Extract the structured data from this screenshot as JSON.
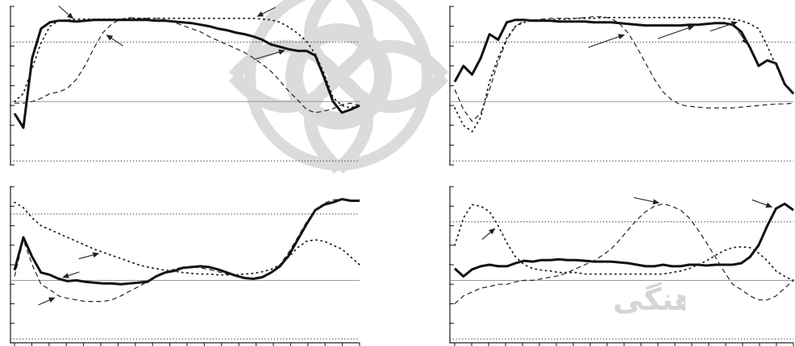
{
  "watermark": {
    "text": "پژوهشگاه علوم انسانی و مطالعات فرهنگی",
    "color": "#d5d5d5"
  },
  "colors": {
    "series": "#111111",
    "zero_line": "#8a8a8a",
    "watermark": "#d5d5d5"
  },
  "chart_data": [
    {
      "type": "line",
      "position": "top-left",
      "title": "",
      "xlabel": "",
      "ylabel": "",
      "grid": false,
      "legend": "none",
      "x_count": 40,
      "y_ticks": 9,
      "ylim": [
        -0.8,
        1.2
      ],
      "zero": 0,
      "ref_upper": 0.75,
      "ref_lower": -0.75,
      "series": [
        {
          "style": "solid",
          "values": [
            -0.15,
            -0.33,
            0.55,
            0.92,
            1.0,
            1.02,
            1.02,
            1.01,
            1.02,
            1.03,
            1.03,
            1.03,
            1.03,
            1.03,
            1.03,
            1.03,
            1.02,
            1.02,
            1.01,
            1.0,
            0.99,
            0.97,
            0.95,
            0.92,
            0.9,
            0.87,
            0.85,
            0.82,
            0.78,
            0.72,
            0.69,
            0.66,
            0.64,
            0.64,
            0.58,
            0.3,
            0.0,
            -0.14,
            -0.1,
            -0.05
          ]
        },
        {
          "style": "dashed",
          "values": [
            -0.02,
            -0.02,
            0.0,
            0.04,
            0.1,
            0.12,
            0.17,
            0.28,
            0.46,
            0.68,
            0.87,
            0.98,
            1.04,
            1.06,
            1.05,
            1.05,
            1.05,
            1.03,
            1.0,
            0.96,
            0.92,
            0.88,
            0.82,
            0.77,
            0.72,
            0.67,
            0.62,
            0.55,
            0.47,
            0.38,
            0.26,
            0.13,
            0.02,
            -0.1,
            -0.14,
            -0.12,
            -0.09,
            -0.04,
            -0.02,
            -0.05
          ]
        },
        {
          "style": "dotted",
          "values": [
            0.0,
            0.1,
            0.42,
            0.74,
            0.95,
            1.02,
            1.03,
            1.04,
            1.04,
            1.04,
            1.04,
            1.04,
            1.04,
            1.05,
            1.05,
            1.05,
            1.05,
            1.05,
            1.05,
            1.05,
            1.05,
            1.05,
            1.05,
            1.05,
            1.05,
            1.05,
            1.05,
            1.05,
            1.04,
            1.03,
            1.0,
            0.94,
            0.86,
            0.76,
            0.6,
            0.35,
            0.05,
            -0.05,
            -0.08,
            -0.04
          ]
        }
      ]
    },
    {
      "type": "line",
      "position": "top-right",
      "title": "",
      "xlabel": "",
      "ylabel": "",
      "grid": false,
      "legend": "none",
      "x_count": 40,
      "y_ticks": 9,
      "ylim": [
        -0.8,
        1.2
      ],
      "zero": 0,
      "ref_upper": 0.75,
      "ref_lower": -0.75,
      "series": [
        {
          "style": "solid",
          "values": [
            0.25,
            0.45,
            0.34,
            0.55,
            0.85,
            0.78,
            1.0,
            1.03,
            1.03,
            1.02,
            1.02,
            1.02,
            1.01,
            1.01,
            1.01,
            1.01,
            1.0,
            1.0,
            1.0,
            0.99,
            0.98,
            0.97,
            0.96,
            0.96,
            0.96,
            0.96,
            0.96,
            0.97,
            0.97,
            0.98,
            0.99,
            0.99,
            0.97,
            0.88,
            0.68,
            0.45,
            0.52,
            0.48,
            0.22,
            0.1
          ]
        },
        {
          "style": "dashed",
          "values": [
            0.15,
            -0.1,
            -0.25,
            -0.15,
            0.15,
            0.5,
            0.78,
            0.95,
            1.02,
            1.03,
            1.04,
            1.05,
            1.05,
            1.05,
            1.05,
            1.06,
            1.07,
            1.07,
            1.05,
            0.98,
            0.86,
            0.68,
            0.48,
            0.28,
            0.12,
            0.02,
            -0.04,
            -0.06,
            -0.07,
            -0.08,
            -0.08,
            -0.08,
            -0.08,
            -0.07,
            -0.06,
            -0.05,
            -0.04,
            -0.03,
            -0.03,
            -0.02
          ]
        },
        {
          "style": "dotted",
          "values": [
            -0.08,
            -0.3,
            -0.38,
            -0.2,
            0.25,
            0.55,
            0.8,
            0.95,
            1.0,
            1.02,
            1.03,
            1.03,
            1.04,
            1.04,
            1.05,
            1.05,
            1.05,
            1.06,
            1.06,
            1.06,
            1.06,
            1.06,
            1.06,
            1.06,
            1.06,
            1.06,
            1.06,
            1.06,
            1.06,
            1.06,
            1.06,
            1.05,
            1.04,
            1.02,
            0.98,
            0.92,
            0.7,
            0.45,
            0.22,
            0.1
          ]
        }
      ]
    },
    {
      "type": "line",
      "position": "bottom-left",
      "title": "",
      "xlabel": "",
      "ylabel": "",
      "grid": false,
      "legend": "none",
      "x_count": 40,
      "y_ticks": 9,
      "ylim": [
        -0.8,
        1.2
      ],
      "zero": 0,
      "ref_upper": 0.85,
      "ref_lower": -0.75,
      "series": [
        {
          "style": "solid",
          "values": [
            0.13,
            0.55,
            0.3,
            0.1,
            0.07,
            0.02,
            -0.01,
            0.0,
            -0.02,
            -0.03,
            -0.04,
            -0.04,
            -0.05,
            -0.04,
            -0.03,
            -0.02,
            0.05,
            0.1,
            0.12,
            0.16,
            0.17,
            0.18,
            0.17,
            0.14,
            0.1,
            0.06,
            0.03,
            0.02,
            0.04,
            0.1,
            0.18,
            0.32,
            0.52,
            0.72,
            0.9,
            0.97,
            1.0,
            1.04,
            1.02,
            1.02
          ]
        },
        {
          "style": "dashed",
          "values": [
            0.05,
            0.52,
            0.2,
            -0.05,
            -0.12,
            -0.2,
            -0.23,
            -0.25,
            -0.27,
            -0.27,
            -0.27,
            -0.25,
            -0.2,
            -0.14,
            -0.08,
            -0.02,
            0.05,
            0.1,
            0.14,
            0.17,
            0.17,
            0.16,
            0.14,
            0.11,
            0.08,
            0.05,
            0.03,
            0.03,
            0.05,
            0.1,
            0.2,
            0.36,
            0.55,
            0.75,
            0.9,
            0.99,
            1.03,
            1.04,
            1.03,
            1.03
          ]
        },
        {
          "style": "dotted",
          "values": [
            1.0,
            0.93,
            0.8,
            0.7,
            0.65,
            0.6,
            0.55,
            0.5,
            0.45,
            0.4,
            0.36,
            0.32,
            0.28,
            0.24,
            0.2,
            0.17,
            0.15,
            0.13,
            0.12,
            0.1,
            0.09,
            0.08,
            0.08,
            0.07,
            0.07,
            0.07,
            0.08,
            0.09,
            0.11,
            0.14,
            0.2,
            0.3,
            0.42,
            0.5,
            0.52,
            0.5,
            0.45,
            0.4,
            0.3,
            0.2
          ]
        }
      ]
    },
    {
      "type": "line",
      "position": "bottom-right",
      "title": "",
      "xlabel": "",
      "ylabel": "",
      "grid": false,
      "legend": "none",
      "x_count": 40,
      "y_ticks": 9,
      "ylim": [
        -0.8,
        1.2
      ],
      "zero": 0,
      "ref_upper": 0.75,
      "ref_lower": -0.75,
      "series": [
        {
          "style": "solid",
          "values": [
            0.15,
            0.05,
            0.14,
            0.18,
            0.2,
            0.18,
            0.18,
            0.22,
            0.25,
            0.24,
            0.26,
            0.26,
            0.27,
            0.26,
            0.26,
            0.25,
            0.24,
            0.24,
            0.24,
            0.23,
            0.22,
            0.2,
            0.18,
            0.18,
            0.2,
            0.18,
            0.18,
            0.2,
            0.2,
            0.19,
            0.2,
            0.2,
            0.2,
            0.22,
            0.3,
            0.45,
            0.7,
            0.92,
            0.98,
            0.9
          ]
        },
        {
          "style": "dashed",
          "values": [
            -0.3,
            -0.2,
            -0.15,
            -0.1,
            -0.08,
            -0.05,
            -0.05,
            -0.02,
            0.0,
            0.0,
            0.02,
            0.04,
            0.06,
            0.1,
            0.15,
            0.2,
            0.25,
            0.32,
            0.4,
            0.52,
            0.65,
            0.78,
            0.88,
            0.95,
            0.98,
            0.95,
            0.9,
            0.8,
            0.65,
            0.48,
            0.3,
            0.12,
            -0.05,
            -0.12,
            -0.2,
            -0.25,
            -0.25,
            -0.2,
            -0.1,
            0.0
          ]
        },
        {
          "style": "dotted",
          "values": [
            0.45,
            0.8,
            0.97,
            0.95,
            0.88,
            0.7,
            0.48,
            0.3,
            0.2,
            0.15,
            0.13,
            0.12,
            0.1,
            0.1,
            0.1,
            0.08,
            0.08,
            0.08,
            0.08,
            0.08,
            0.08,
            0.08,
            0.08,
            0.08,
            0.08,
            0.1,
            0.12,
            0.15,
            0.2,
            0.25,
            0.32,
            0.38,
            0.42,
            0.43,
            0.42,
            0.35,
            0.25,
            0.12,
            0.05,
            0.0
          ]
        }
      ]
    }
  ]
}
